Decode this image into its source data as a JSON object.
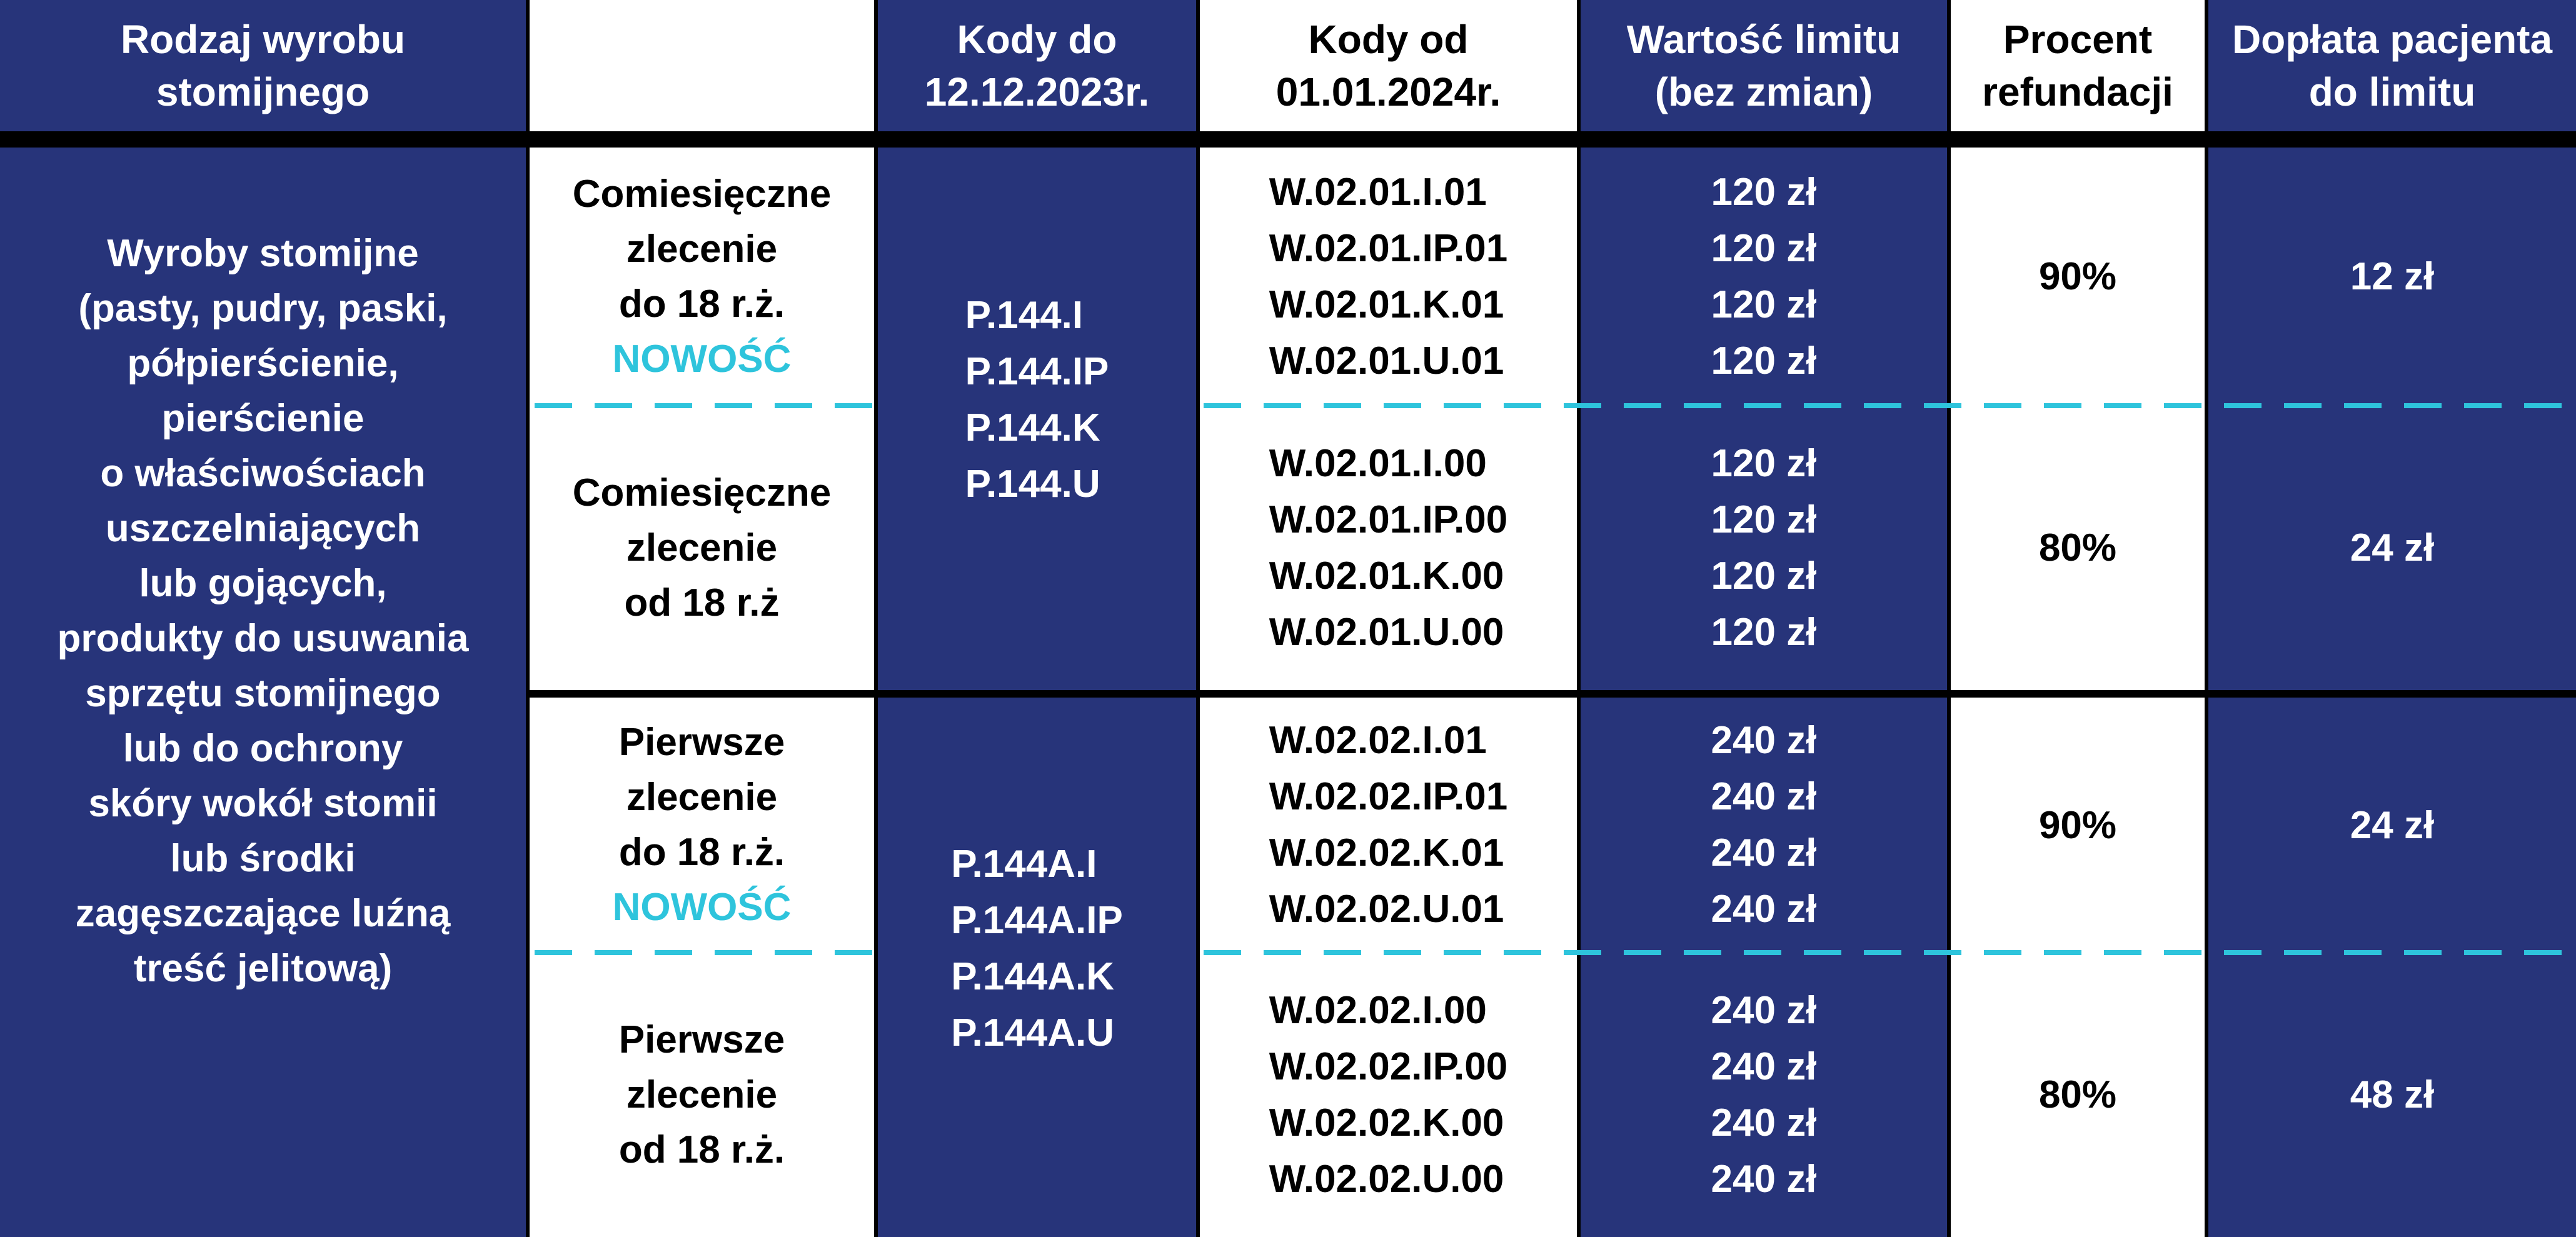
{
  "header": {
    "col1": "Rodzaj wyrobu\nstomijnego",
    "col2": "",
    "col3": "Kody do\n12.12.2023r.",
    "col4": "Kody od\n01.01.2024r.",
    "col5": "Wartość limitu\n(bez zmian)",
    "col6": "Procent\nrefundacji",
    "col7": "Dopłata pacjenta\ndo limitu"
  },
  "product": "Wyroby stomijne\n(pasty, pudry, paski,\npółpierścienie,\npierścienie\no właściwościach\nuszczelniających\nlub gojących,\nprodukty do usuwania\nsprzętu stomijnego\nlub do ochrony\nskóry wokół stomii\nlub środki\nzagęszczające luźną\ntreść jelitową)",
  "groups": [
    {
      "codes_old": [
        "P.144.I",
        "P.144.IP",
        "P.144.K",
        "P.144.U"
      ],
      "subrows": [
        {
          "label": "Comiesięczne\nzlecenie\ndo 18 r.ż.",
          "badge": "NOWOŚĆ",
          "codes_new": [
            "W.02.01.I.01",
            "W.02.01.IP.01",
            "W.02.01.K.01",
            "W.02.01.U.01"
          ],
          "limits": [
            "120 zł",
            "120 zł",
            "120 zł",
            "120 zł"
          ],
          "percent": "90%",
          "copay": "12 zł"
        },
        {
          "label": "Comiesięczne\nzlecenie\nod 18 r.ż",
          "codes_new": [
            "W.02.01.I.00",
            "W.02.01.IP.00",
            "W.02.01.K.00",
            "W.02.01.U.00"
          ],
          "limits": [
            "120 zł",
            "120 zł",
            "120 zł",
            "120 zł"
          ],
          "percent": "80%",
          "copay": "24 zł"
        }
      ]
    },
    {
      "codes_old": [
        "P.144A.I",
        "P.144A.IP",
        "P.144A.K",
        "P.144A.U"
      ],
      "subrows": [
        {
          "label": "Pierwsze\nzlecenie\ndo 18 r.ż.",
          "badge": "NOWOŚĆ",
          "codes_new": [
            "W.02.02.I.01",
            "W.02.02.IP.01",
            "W.02.02.K.01",
            "W.02.02.U.01"
          ],
          "limits": [
            "240 zł",
            "240 zł",
            "240 zł",
            "240 zł"
          ],
          "percent": "90%",
          "copay": "24 zł"
        },
        {
          "label": "Pierwsze\nzlecenie\nod 18 r.ż.",
          "codes_new": [
            "W.02.02.I.00",
            "W.02.02.IP.00",
            "W.02.02.K.00",
            "W.02.02.U.00"
          ],
          "limits": [
            "240 zł",
            "240 zł",
            "240 zł",
            "240 zł"
          ],
          "percent": "80%",
          "copay": "48 zł"
        }
      ]
    }
  ],
  "colors": {
    "navy": "#27347a",
    "accent": "#2ec4dc",
    "divider": "#000000"
  }
}
